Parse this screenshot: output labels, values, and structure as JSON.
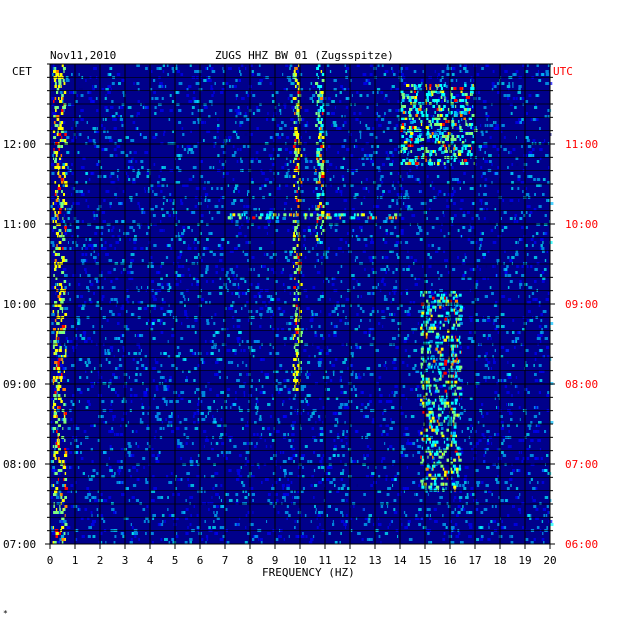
{
  "header": {
    "date": "Nov11,2010",
    "station": "ZUGS HHZ BW 01 (Zugsspitze)",
    "left_timezone": "CET",
    "right_timezone": "UTC"
  },
  "corner_mark": "*",
  "colors": {
    "background_spectrum": "#00008b",
    "grid": "#000000",
    "utc_labels": "#ff0000",
    "cet_labels": "#000000",
    "colormap": [
      "#00007f",
      "#0000ff",
      "#00bfff",
      "#00ffff",
      "#7fff7f",
      "#ffff00",
      "#ff7f00",
      "#ff0000"
    ]
  },
  "chart_data": {
    "type": "heatmap",
    "title": "ZUGS HHZ BW 01 (Zugsspitze)",
    "date": "Nov11,2010",
    "xlabel": "FREQUENCY (HZ)",
    "x_ticks": [
      "0",
      "1",
      "2",
      "3",
      "4",
      "5",
      "6",
      "7",
      "8",
      "9",
      "10",
      "11",
      "12",
      "13",
      "14",
      "15",
      "16",
      "17",
      "18",
      "19",
      "20"
    ],
    "xlim": [
      0,
      20
    ],
    "y_left_label": "CET",
    "y_right_label": "UTC",
    "y_left_ticks": [
      "07:00",
      "08:00",
      "09:00",
      "10:00",
      "11:00",
      "12:00"
    ],
    "y_right_ticks": [
      "06:00",
      "07:00",
      "08:00",
      "09:00",
      "10:00",
      "11:00"
    ],
    "time_range_cet": [
      "07:00",
      "13:00"
    ],
    "grid": true,
    "features": [
      {
        "band_hz": [
          0.1,
          0.6
        ],
        "time_cet": [
          "07:00",
          "13:00"
        ],
        "intensity": "high",
        "note": "persistent low-frequency energy"
      },
      {
        "band_hz": [
          9.7,
          10.0
        ],
        "time_cet": [
          "08:55",
          "13:00"
        ],
        "intensity": "high"
      },
      {
        "band_hz": [
          10.6,
          10.9
        ],
        "time_cet": [
          "10:45",
          "13:00"
        ],
        "intensity": "medium"
      },
      {
        "band_hz": [
          14.8,
          16.4
        ],
        "time_cet": [
          "07:40",
          "10:10"
        ],
        "intensity": "medium"
      },
      {
        "band_hz": [
          14.0,
          17.0
        ],
        "time_cet": [
          "11:45",
          "12:45"
        ],
        "intensity": "medium"
      },
      {
        "band_hz": [
          7.0,
          14.0
        ],
        "time_cet": [
          "11:04",
          "11:08"
        ],
        "intensity": "medium",
        "note": "broadband line"
      }
    ]
  }
}
